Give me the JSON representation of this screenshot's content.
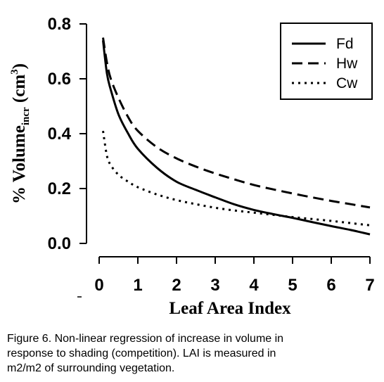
{
  "chart_data": {
    "type": "line",
    "xlabel": "Leaf Area Index",
    "ylabel": {
      "prefix": "% Volume",
      "subscript": "incr",
      "unit_open": " (cm",
      "superscript": "3",
      "unit_close": ")"
    },
    "xlim": [
      0,
      7
    ],
    "ylim": [
      0,
      0.8
    ],
    "xticks": [
      "0",
      "1",
      "2",
      "3",
      "4",
      "5",
      "6",
      "7"
    ],
    "yticks": [
      "0.0",
      "0.2",
      "0.4",
      "0.6",
      "0.8"
    ],
    "grid": false,
    "legend_position": "top-right",
    "x": [
      0.1,
      0.2,
      0.3,
      0.5,
      0.75,
      1,
      1.5,
      2,
      2.5,
      3,
      3.5,
      4,
      4.5,
      5,
      5.5,
      6,
      6.5,
      7
    ],
    "series": [
      {
        "name": "Fd",
        "style": "solid",
        "color": "#000000",
        "values": [
          0.74,
          0.62,
          0.56,
          0.47,
          0.4,
          0.345,
          0.275,
          0.225,
          0.195,
          0.168,
          0.142,
          0.122,
          0.107,
          0.093,
          0.078,
          0.063,
          0.049,
          0.033
        ]
      },
      {
        "name": "Hw",
        "style": "dashed",
        "color": "#000000",
        "values": [
          0.75,
          0.66,
          0.6,
          0.53,
          0.46,
          0.41,
          0.35,
          0.31,
          0.28,
          0.255,
          0.233,
          0.213,
          0.197,
          0.182,
          0.168,
          0.155,
          0.143,
          0.131
        ]
      },
      {
        "name": "Cw",
        "style": "dotted",
        "color": "#000000",
        "values": [
          0.41,
          0.32,
          0.285,
          0.25,
          0.225,
          0.205,
          0.178,
          0.158,
          0.143,
          0.13,
          0.12,
          0.112,
          0.104,
          0.096,
          0.089,
          0.082,
          0.074,
          0.066
        ]
      }
    ]
  },
  "caption": {
    "line1": "Figure 6. Non-linear regression of increase in volume in",
    "line2": "response to shading (competition). LAI is measured in",
    "line3": "m2/m2 of surrounding vegetation."
  }
}
